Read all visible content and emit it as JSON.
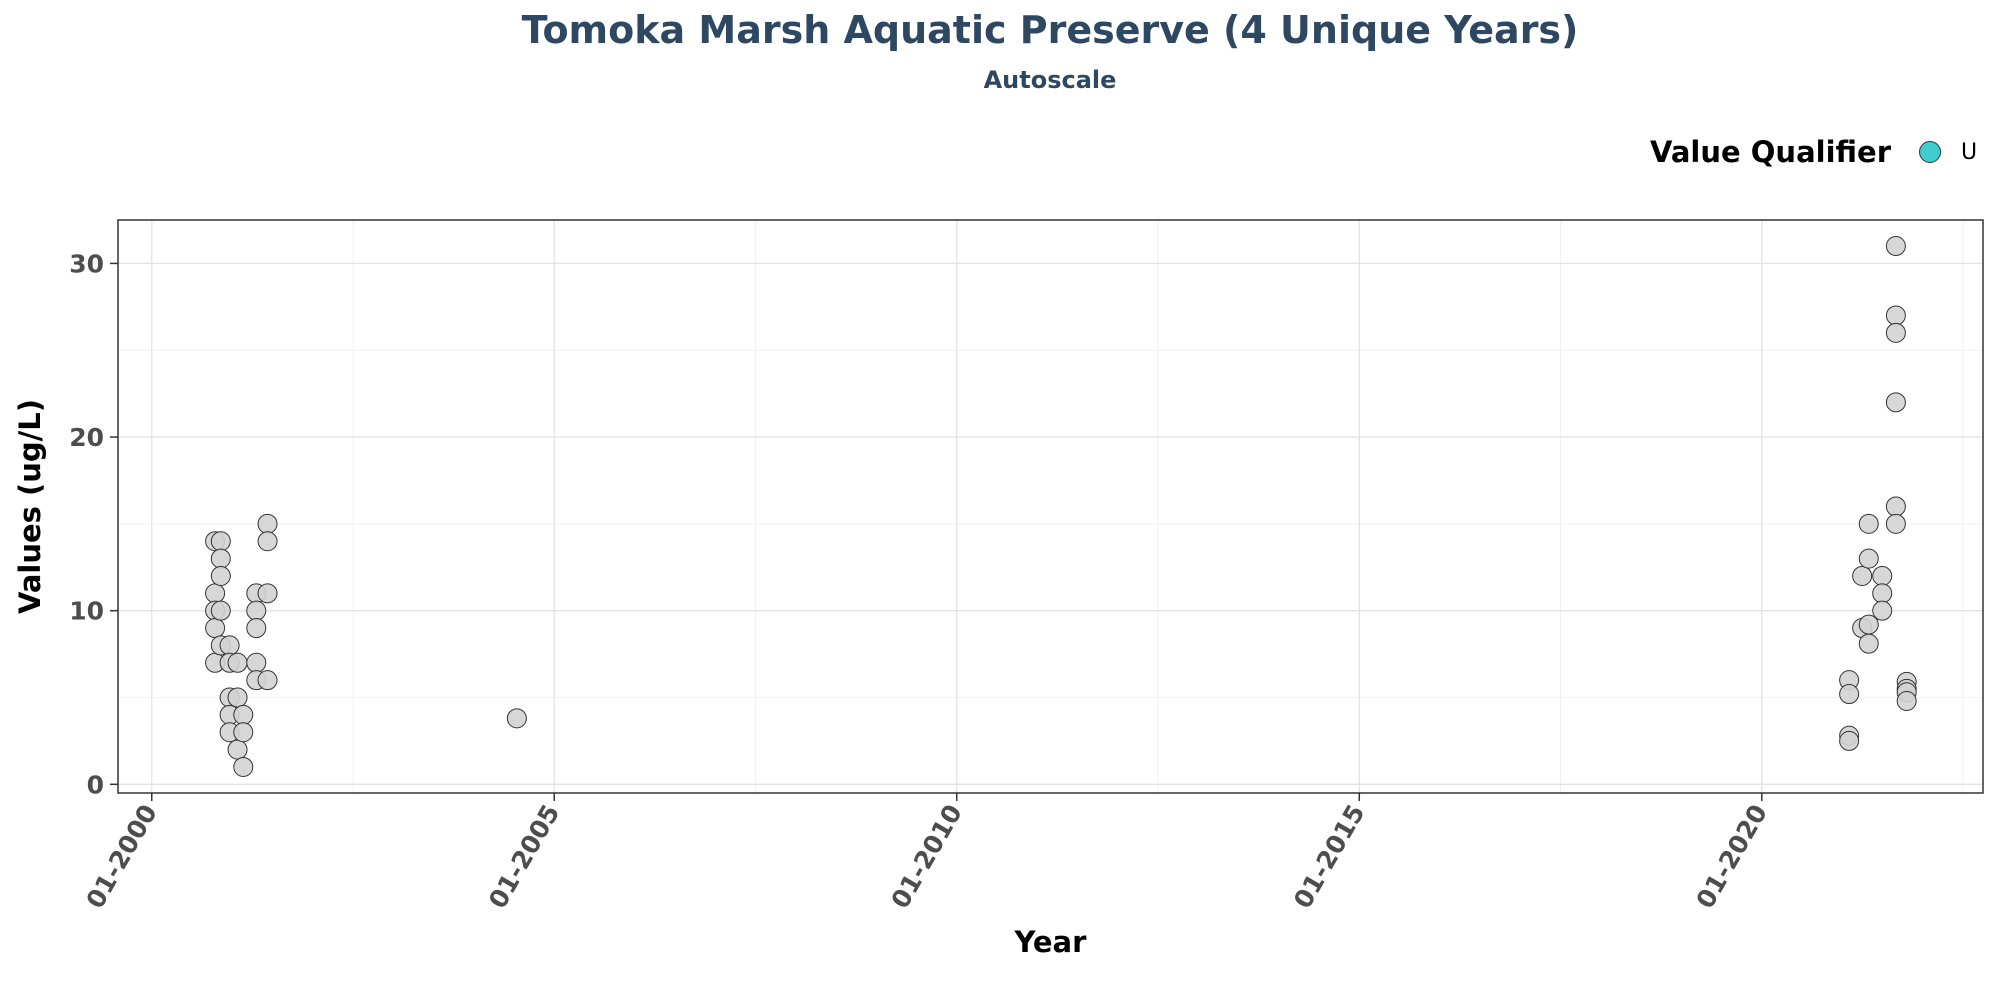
{
  "chart_data": {
    "type": "scatter",
    "title": "Tomoka Marsh Aquatic Preserve (4 Unique Years)",
    "subtitle": "Autoscale",
    "xlabel": "Year",
    "ylabel": "Values (ug/L)",
    "x_axis_type": "date",
    "xlim": [
      "1999-08-01",
      "2022-10-01"
    ],
    "ylim": [
      -0.5,
      32.5
    ],
    "x_ticks": [
      {
        "label": "01-2000",
        "date": "2000-01-01"
      },
      {
        "label": "01-2005",
        "date": "2005-01-01"
      },
      {
        "label": "01-2010",
        "date": "2010-01-01"
      },
      {
        "label": "01-2015",
        "date": "2015-01-01"
      },
      {
        "label": "01-2020",
        "date": "2020-01-01"
      }
    ],
    "y_ticks": [
      0,
      10,
      20,
      30
    ],
    "grid": true,
    "point_color": "#d3d3d3",
    "legend": {
      "title": "Value Qualifier",
      "placement": "top-right",
      "entries": [
        {
          "label": "U",
          "color": "#3fcdcd"
        }
      ]
    },
    "series": [
      {
        "points": [
          {
            "x": "2000-10-15",
            "y": 14
          },
          {
            "x": "2000-10-15",
            "y": 11
          },
          {
            "x": "2000-10-15",
            "y": 10
          },
          {
            "x": "2000-10-15",
            "y": 9
          },
          {
            "x": "2000-10-15",
            "y": 7
          },
          {
            "x": "2000-11-10",
            "y": 14
          },
          {
            "x": "2000-11-10",
            "y": 13
          },
          {
            "x": "2000-11-10",
            "y": 12
          },
          {
            "x": "2000-11-10",
            "y": 10
          },
          {
            "x": "2000-11-10",
            "y": 8
          },
          {
            "x": "2000-12-20",
            "y": 8
          },
          {
            "x": "2000-12-20",
            "y": 7
          },
          {
            "x": "2000-12-20",
            "y": 5
          },
          {
            "x": "2000-12-20",
            "y": 4
          },
          {
            "x": "2000-12-20",
            "y": 3
          },
          {
            "x": "2001-01-25",
            "y": 7
          },
          {
            "x": "2001-01-25",
            "y": 5
          },
          {
            "x": "2001-01-25",
            "y": 2
          },
          {
            "x": "2001-02-20",
            "y": 4
          },
          {
            "x": "2001-02-20",
            "y": 3
          },
          {
            "x": "2001-02-20",
            "y": 1
          },
          {
            "x": "2001-04-20",
            "y": 11
          },
          {
            "x": "2001-04-20",
            "y": 10
          },
          {
            "x": "2001-04-20",
            "y": 9
          },
          {
            "x": "2001-04-20",
            "y": 7
          },
          {
            "x": "2001-04-20",
            "y": 6
          },
          {
            "x": "2001-06-10",
            "y": 15
          },
          {
            "x": "2001-06-10",
            "y": 14
          },
          {
            "x": "2001-06-10",
            "y": 11
          },
          {
            "x": "2001-06-10",
            "y": 6
          },
          {
            "x": "2004-07-15",
            "y": 3.8
          },
          {
            "x": "2021-02-01",
            "y": 6
          },
          {
            "x": "2021-02-01",
            "y": 5.2
          },
          {
            "x": "2021-02-01",
            "y": 2.8
          },
          {
            "x": "2021-02-01",
            "y": 2.5
          },
          {
            "x": "2021-04-01",
            "y": 12
          },
          {
            "x": "2021-04-01",
            "y": 9
          },
          {
            "x": "2021-05-01",
            "y": 15
          },
          {
            "x": "2021-05-01",
            "y": 13
          },
          {
            "x": "2021-05-01",
            "y": 9.2
          },
          {
            "x": "2021-05-01",
            "y": 8.1
          },
          {
            "x": "2021-07-01",
            "y": 12
          },
          {
            "x": "2021-07-01",
            "y": 11
          },
          {
            "x": "2021-07-01",
            "y": 10
          },
          {
            "x": "2021-09-01",
            "y": 31
          },
          {
            "x": "2021-09-01",
            "y": 27
          },
          {
            "x": "2021-09-01",
            "y": 26
          },
          {
            "x": "2021-09-01",
            "y": 22
          },
          {
            "x": "2021-09-01",
            "y": 16
          },
          {
            "x": "2021-09-01",
            "y": 15
          },
          {
            "x": "2021-10-20",
            "y": 5.9
          },
          {
            "x": "2021-10-20",
            "y": 5.5
          },
          {
            "x": "2021-10-20",
            "y": 5.3
          },
          {
            "x": "2021-10-20",
            "y": 4.8
          }
        ]
      }
    ]
  }
}
